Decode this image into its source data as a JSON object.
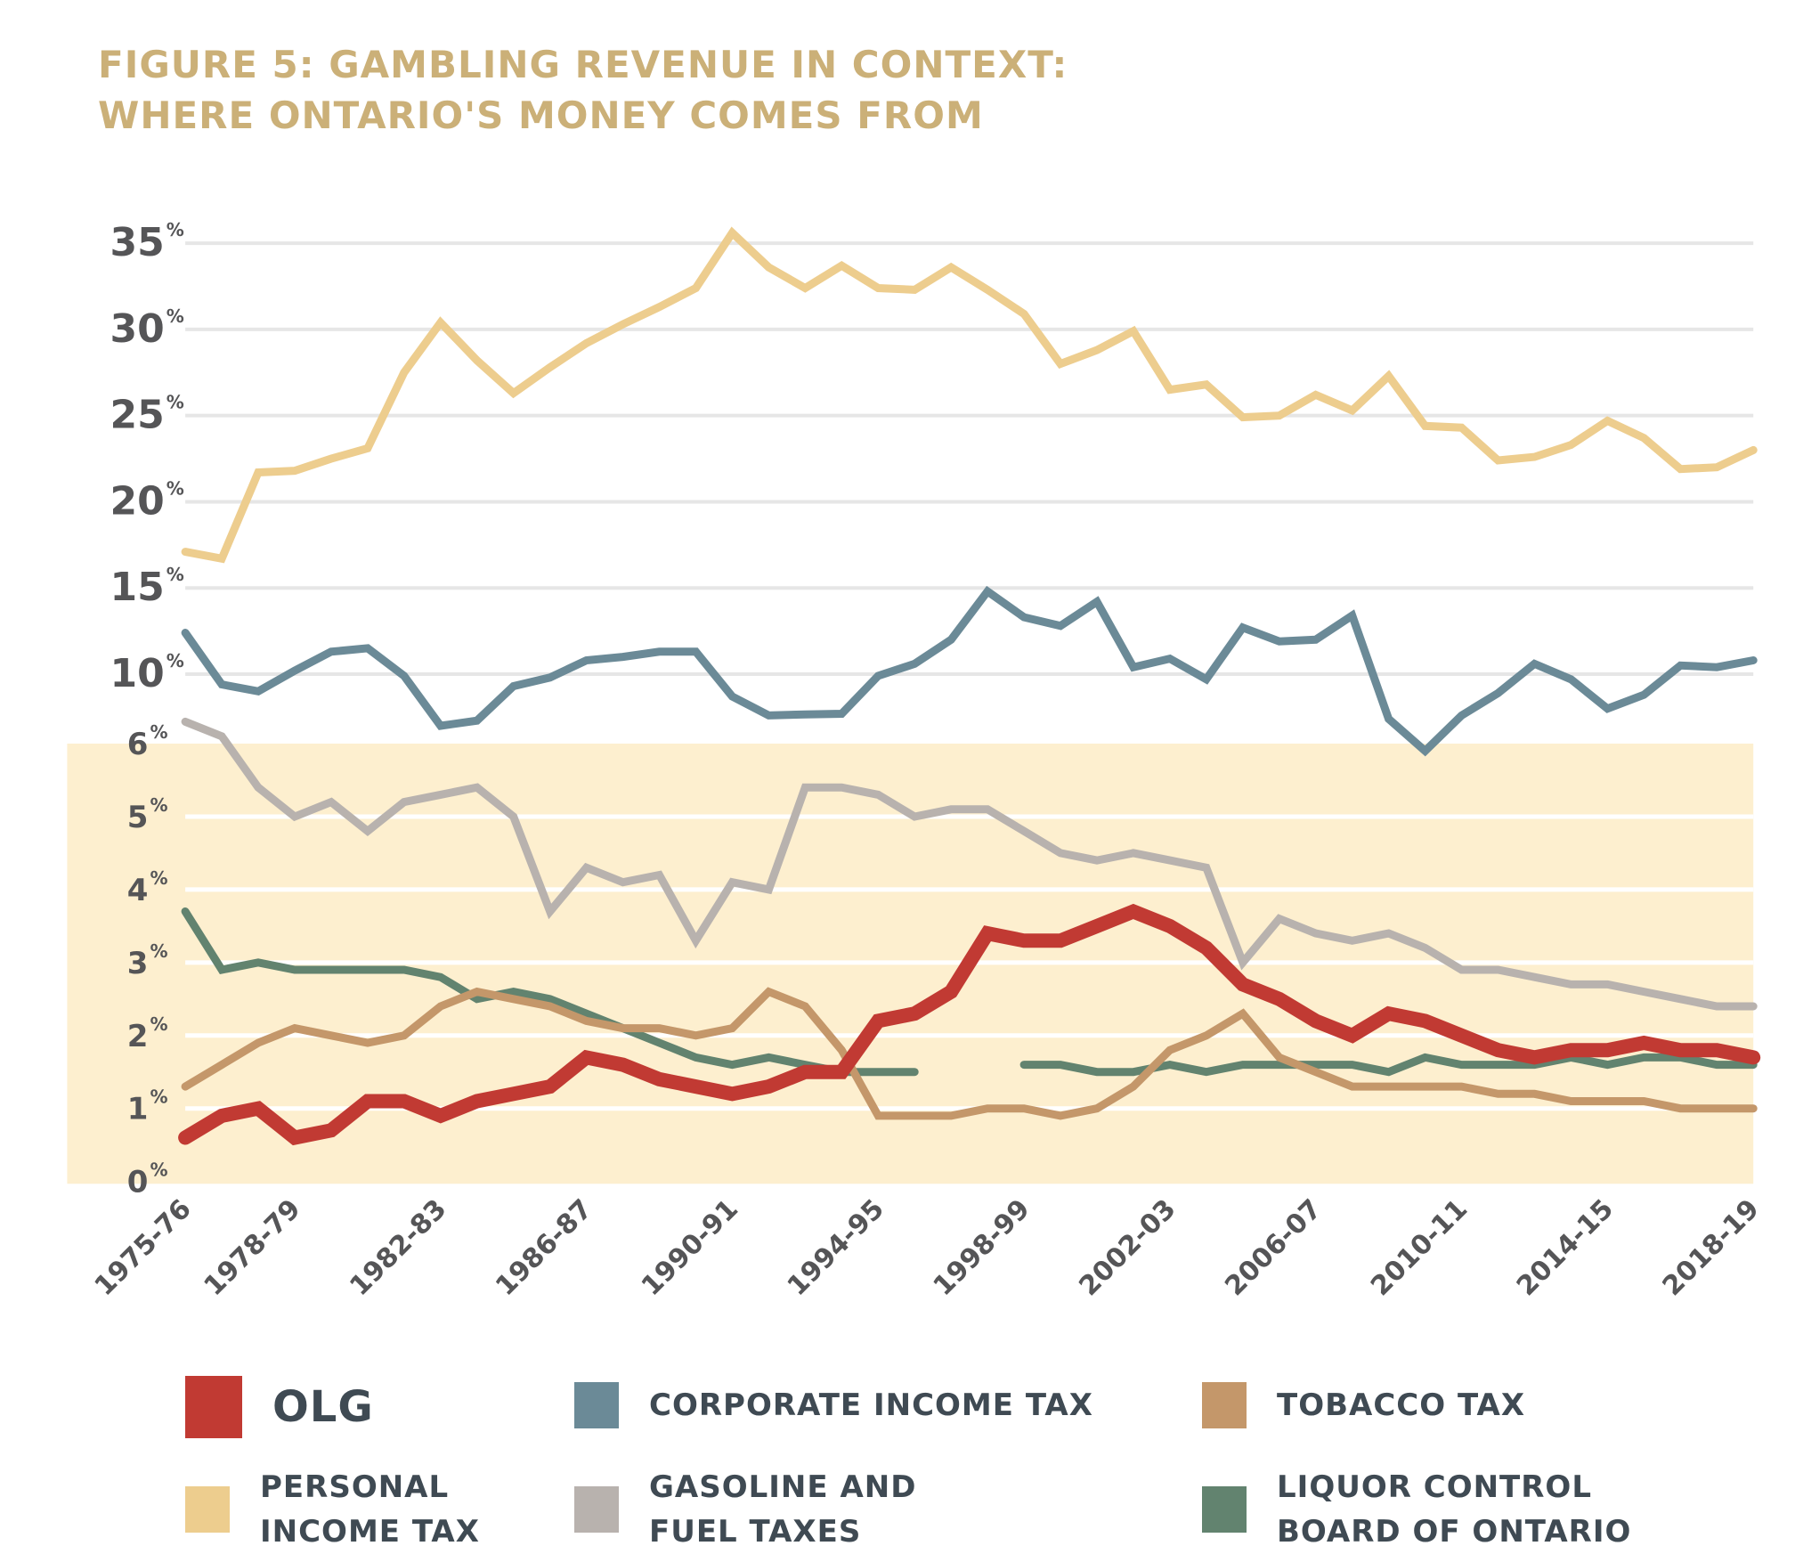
{
  "title": {
    "line1": "FIGURE 5: GAMBLING REVENUE IN CONTEXT:",
    "line2": "WHERE ONTARIO'S MONEY COMES FROM"
  },
  "colors": {
    "title": "#cbb078",
    "axis_text": "#555557",
    "legend_text": "#3f4a53",
    "grid_top": "#e6e6e6",
    "grid_bottom": "#ffffff",
    "lower_band": "#fdefcf"
  },
  "chart_data": {
    "type": "line",
    "title": "FIGURE 5: GAMBLING REVENUE IN CONTEXT: WHERE ONTARIO'S MONEY COMES FROM",
    "xlabel": "",
    "ylabel": "",
    "axis_note": "broken y-axis: lower band 0%-6% (expanded scale), upper section 10%-35%",
    "y_lower": {
      "range": [
        0,
        6
      ],
      "ticks": [
        "0",
        "1",
        "2",
        "3",
        "4",
        "5",
        "6"
      ]
    },
    "y_upper": {
      "range": [
        10,
        35
      ],
      "ticks": [
        "10",
        "15",
        "20",
        "25",
        "30",
        "35"
      ]
    },
    "tick_suffix": "%",
    "grid": true,
    "x": [
      "1975-76",
      "1976-77",
      "1977-78",
      "1978-79",
      "1979-80",
      "1980-81",
      "1981-82",
      "1982-83",
      "1983-84",
      "1984-85",
      "1985-86",
      "1986-87",
      "1987-88",
      "1988-89",
      "1989-90",
      "1990-91",
      "1991-92",
      "1992-93",
      "1993-94",
      "1994-95",
      "1995-96",
      "1996-97",
      "1997-98",
      "1998-99",
      "1999-00",
      "2000-01",
      "2001-02",
      "2002-03",
      "2003-04",
      "2004-05",
      "2005-06",
      "2006-07",
      "2007-08",
      "2008-09",
      "2009-10",
      "2010-11",
      "2011-12",
      "2012-13",
      "2013-14",
      "2014-15",
      "2015-16",
      "2016-17",
      "2017-18",
      "2018-19"
    ],
    "x_tick_labels": [
      "1975-76",
      "1978-79",
      "1982-83",
      "1986-87",
      "1990-91",
      "1994-95",
      "1998-99",
      "2002-03",
      "2006-07",
      "2010-11",
      "2014-15",
      "2018-19"
    ],
    "series": [
      {
        "name": "PERSONAL INCOME TAX",
        "color": "#edcd8e",
        "values": [
          17.1,
          16.7,
          21.7,
          21.8,
          22.5,
          23.1,
          27.5,
          30.4,
          28.2,
          26.3,
          27.8,
          29.2,
          30.3,
          31.3,
          32.4,
          35.6,
          33.6,
          32.4,
          33.7,
          32.4,
          32.3,
          33.6,
          32.3,
          30.9,
          28.0,
          28.8,
          29.9,
          26.5,
          26.8,
          24.9,
          25.0,
          26.2,
          25.3,
          27.3,
          24.4,
          24.3,
          22.4,
          22.6,
          23.3,
          24.7,
          23.7,
          21.9,
          22.0,
          23.0
        ]
      },
      {
        "name": "CORPORATE INCOME TAX",
        "color": "#6b8a97",
        "values": [
          12.4,
          9.4,
          9.0,
          10.2,
          11.3,
          11.5,
          9.9,
          7.0,
          7.3,
          9.3,
          9.8,
          10.8,
          11.0,
          11.3,
          11.3,
          8.7,
          7.6,
          6.4,
          7.7,
          9.9,
          10.6,
          12.0,
          14.8,
          13.3,
          12.8,
          14.2,
          10.4,
          10.9,
          9.7,
          12.7,
          11.9,
          12.0,
          13.4,
          7.4,
          5.9,
          7.6,
          8.9,
          10.6,
          9.7,
          8.0,
          8.8,
          10.5,
          10.4,
          10.8
        ]
      },
      {
        "name": "GASOLINE AND FUEL TAXES",
        "color": "#b8b2ae",
        "values": [
          6.3,
          6.1,
          5.4,
          5.0,
          5.2,
          4.8,
          5.2,
          5.3,
          5.4,
          5.0,
          3.7,
          4.3,
          4.1,
          4.2,
          3.3,
          4.1,
          4.0,
          5.4,
          5.4,
          5.3,
          5.0,
          5.1,
          5.1,
          4.8,
          4.5,
          4.4,
          4.5,
          4.4,
          4.3,
          3.0,
          3.6,
          3.4,
          3.3,
          3.4,
          3.2,
          2.9,
          2.9,
          2.8,
          2.7,
          2.7,
          2.6,
          2.5,
          2.4,
          2.4
        ]
      },
      {
        "name": "LIQUOR CONTROL BOARD OF ONTARIO",
        "color": "#62836f",
        "values": [
          3.7,
          2.9,
          3.0,
          2.9,
          2.9,
          2.9,
          2.9,
          2.8,
          2.5,
          2.6,
          2.5,
          2.3,
          2.1,
          1.9,
          1.7,
          1.6,
          1.7,
          1.6,
          1.5,
          1.5,
          1.5,
          null,
          null,
          1.6,
          1.6,
          1.5,
          1.5,
          1.6,
          1.5,
          1.6,
          1.6,
          1.6,
          1.6,
          1.5,
          1.7,
          1.6,
          1.6,
          1.6,
          1.7,
          1.6,
          1.7,
          1.7,
          1.6,
          1.6
        ]
      },
      {
        "name": "TOBACCO TAX",
        "color": "#c4976a",
        "values": [
          1.3,
          1.6,
          1.9,
          2.1,
          2.0,
          1.9,
          2.0,
          2.4,
          2.6,
          2.5,
          2.4,
          2.2,
          2.1,
          2.1,
          2.0,
          2.1,
          2.6,
          2.4,
          1.8,
          0.9,
          0.9,
          0.9,
          1.0,
          1.0,
          0.9,
          1.0,
          1.3,
          1.8,
          2.0,
          2.3,
          1.7,
          1.5,
          1.3,
          1.3,
          1.3,
          1.3,
          1.2,
          1.2,
          1.1,
          1.1,
          1.1,
          1.0,
          1.0,
          1.0
        ]
      },
      {
        "name": "OLG",
        "color": "#c13a33",
        "values": [
          0.6,
          0.9,
          1.0,
          0.6,
          0.7,
          1.1,
          1.1,
          0.9,
          1.1,
          1.2,
          1.3,
          1.7,
          1.6,
          1.4,
          1.3,
          1.2,
          1.3,
          1.5,
          1.5,
          2.2,
          2.3,
          2.6,
          3.4,
          3.3,
          3.3,
          3.5,
          3.7,
          3.5,
          3.2,
          2.7,
          2.5,
          2.2,
          2.0,
          2.3,
          2.2,
          2.0,
          1.8,
          1.7,
          1.8,
          1.8,
          1.9,
          1.8,
          1.8,
          1.7
        ]
      }
    ],
    "legend_position": "bottom",
    "legend": [
      {
        "label": "OLG",
        "color": "#c13a33"
      },
      {
        "label": "CORPORATE INCOME TAX",
        "color": "#6b8a97"
      },
      {
        "label": "TOBACCO TAX",
        "color": "#c4976a"
      },
      {
        "label": "PERSONAL\nINCOME TAX",
        "color": "#edcd8e"
      },
      {
        "label": "GASOLINE AND\nFUEL TAXES",
        "color": "#b8b2ae"
      },
      {
        "label": "LIQUOR CONTROL\nBOARD OF ONTARIO",
        "color": "#62836f"
      }
    ]
  }
}
